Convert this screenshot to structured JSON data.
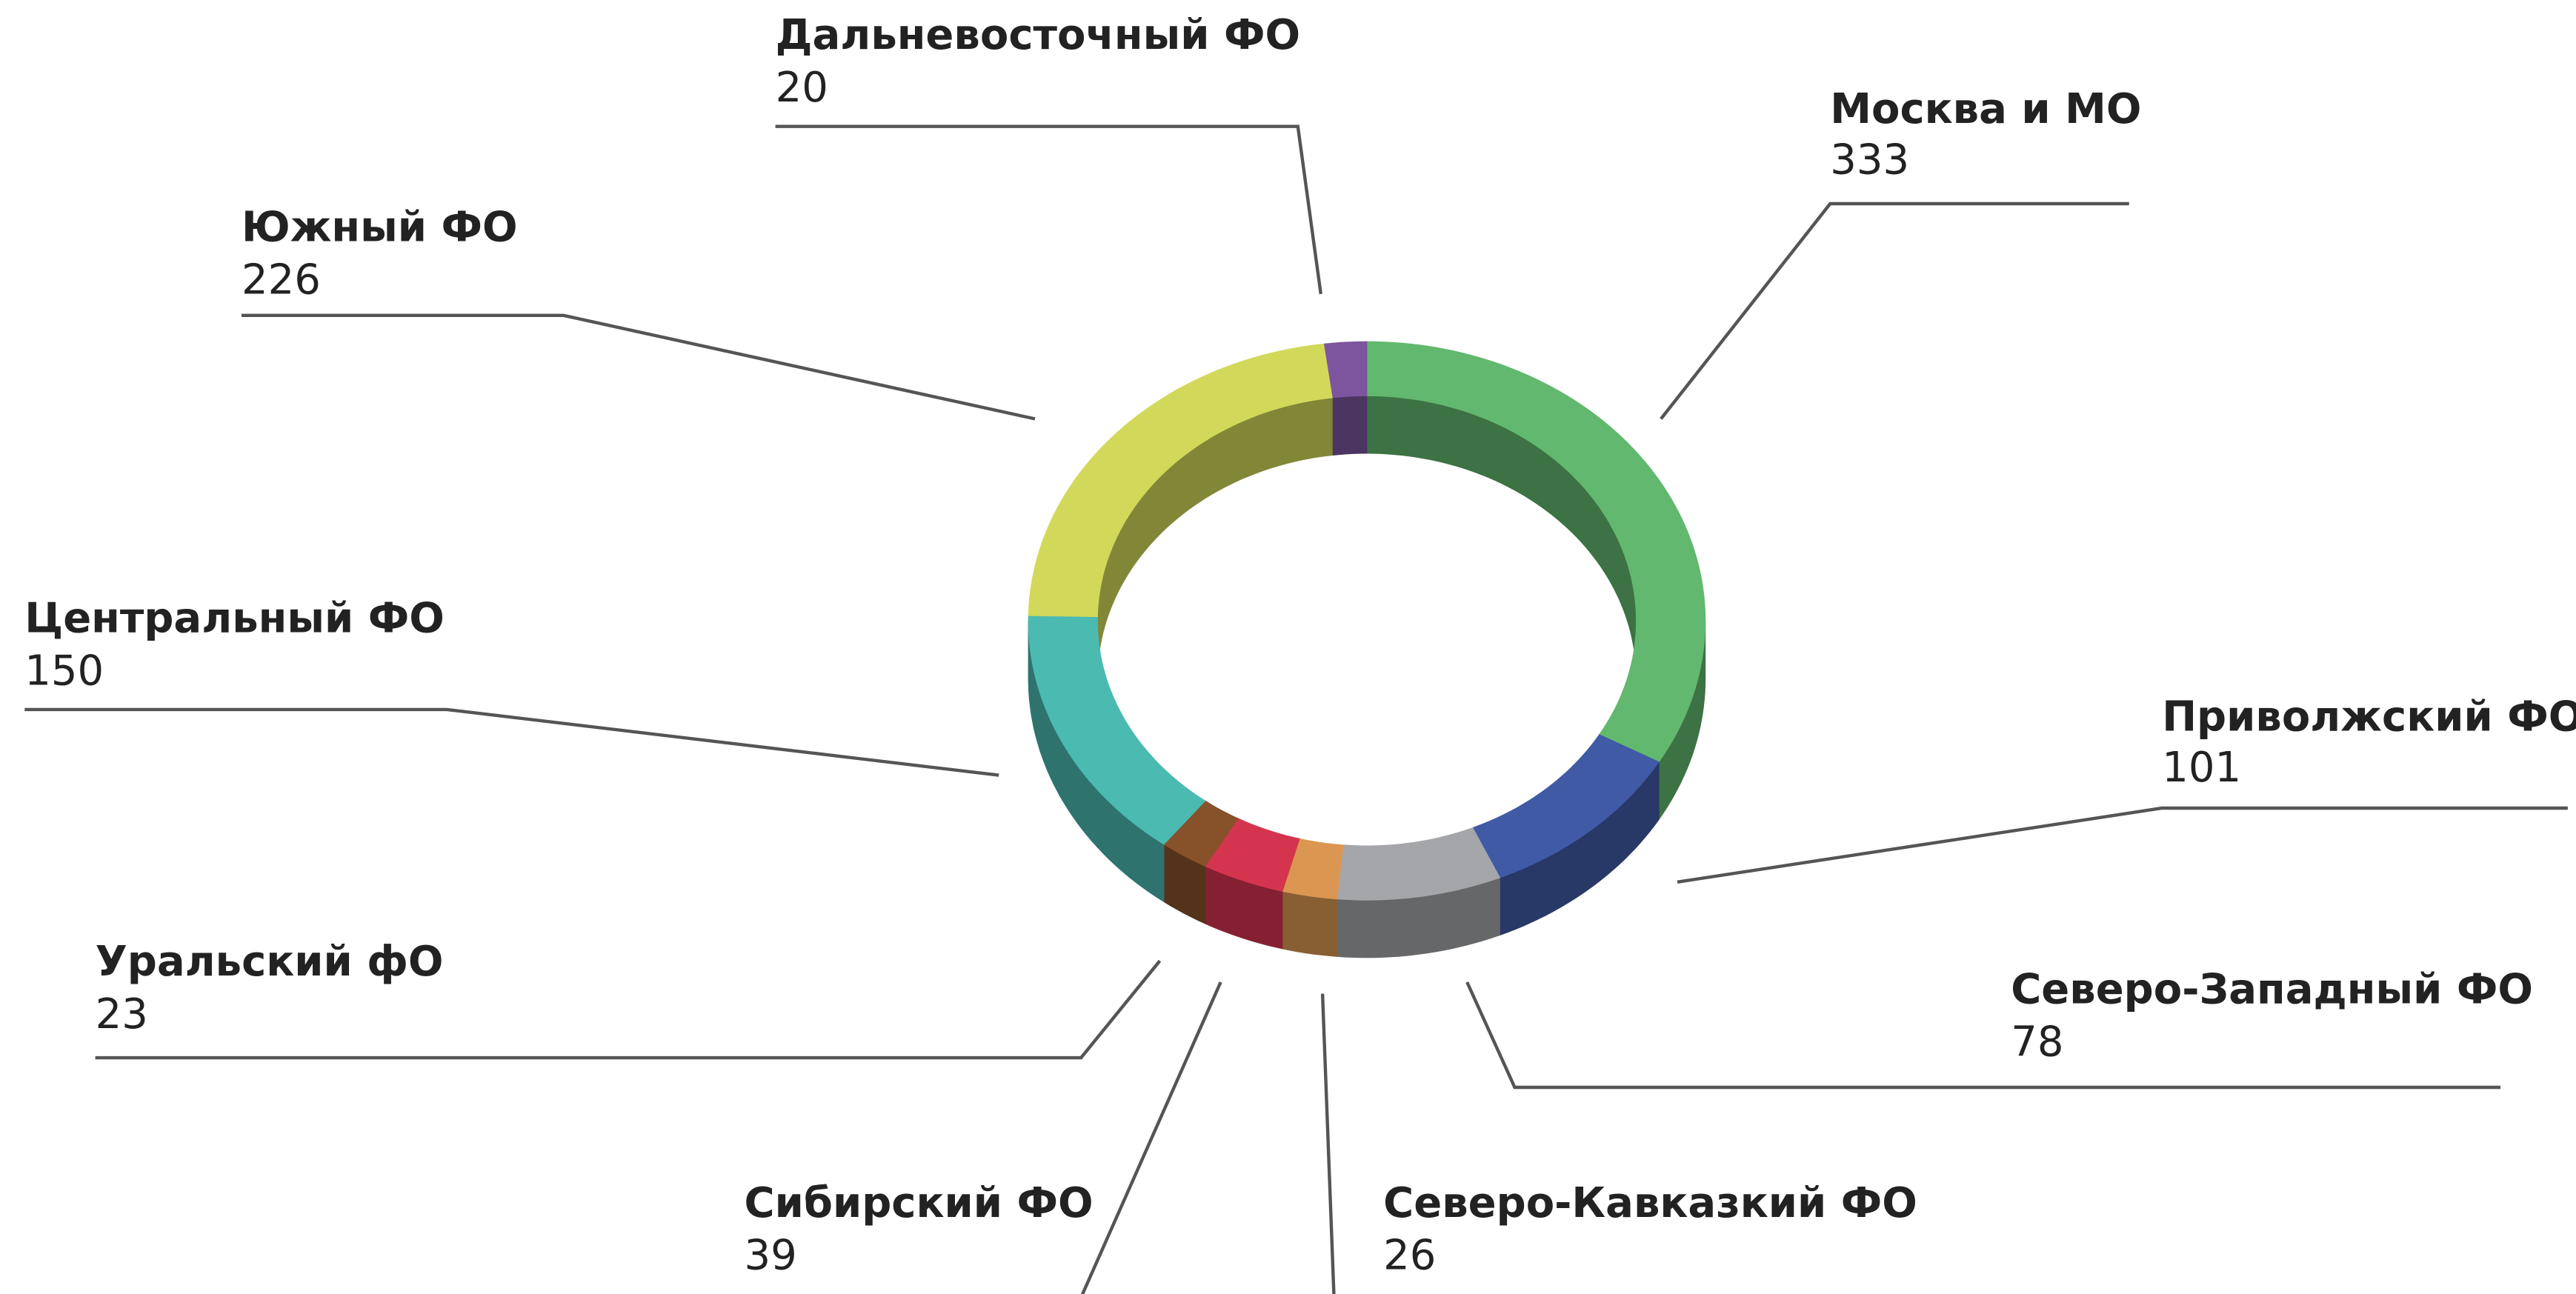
{
  "chart_data": {
    "type": "donut",
    "categories": [
      "Москва и МО",
      "Приволжский ФО",
      "Северо-Западный ФО",
      "Северо-Кавказкий ФО",
      "Сибирский ФО",
      "Уральский фО",
      "Центральный ФО",
      "Южный ФО",
      "Дальневосточный ФО"
    ],
    "values": [
      333,
      101,
      78,
      26,
      39,
      23,
      150,
      226,
      20
    ],
    "colors": [
      "#62b86e",
      "#405aa6",
      "#a5a6aa",
      "#db9752",
      "#d5344f",
      "#87522a",
      "#4bbab1",
      "#d2d95a",
      "#7c559e"
    ]
  }
}
